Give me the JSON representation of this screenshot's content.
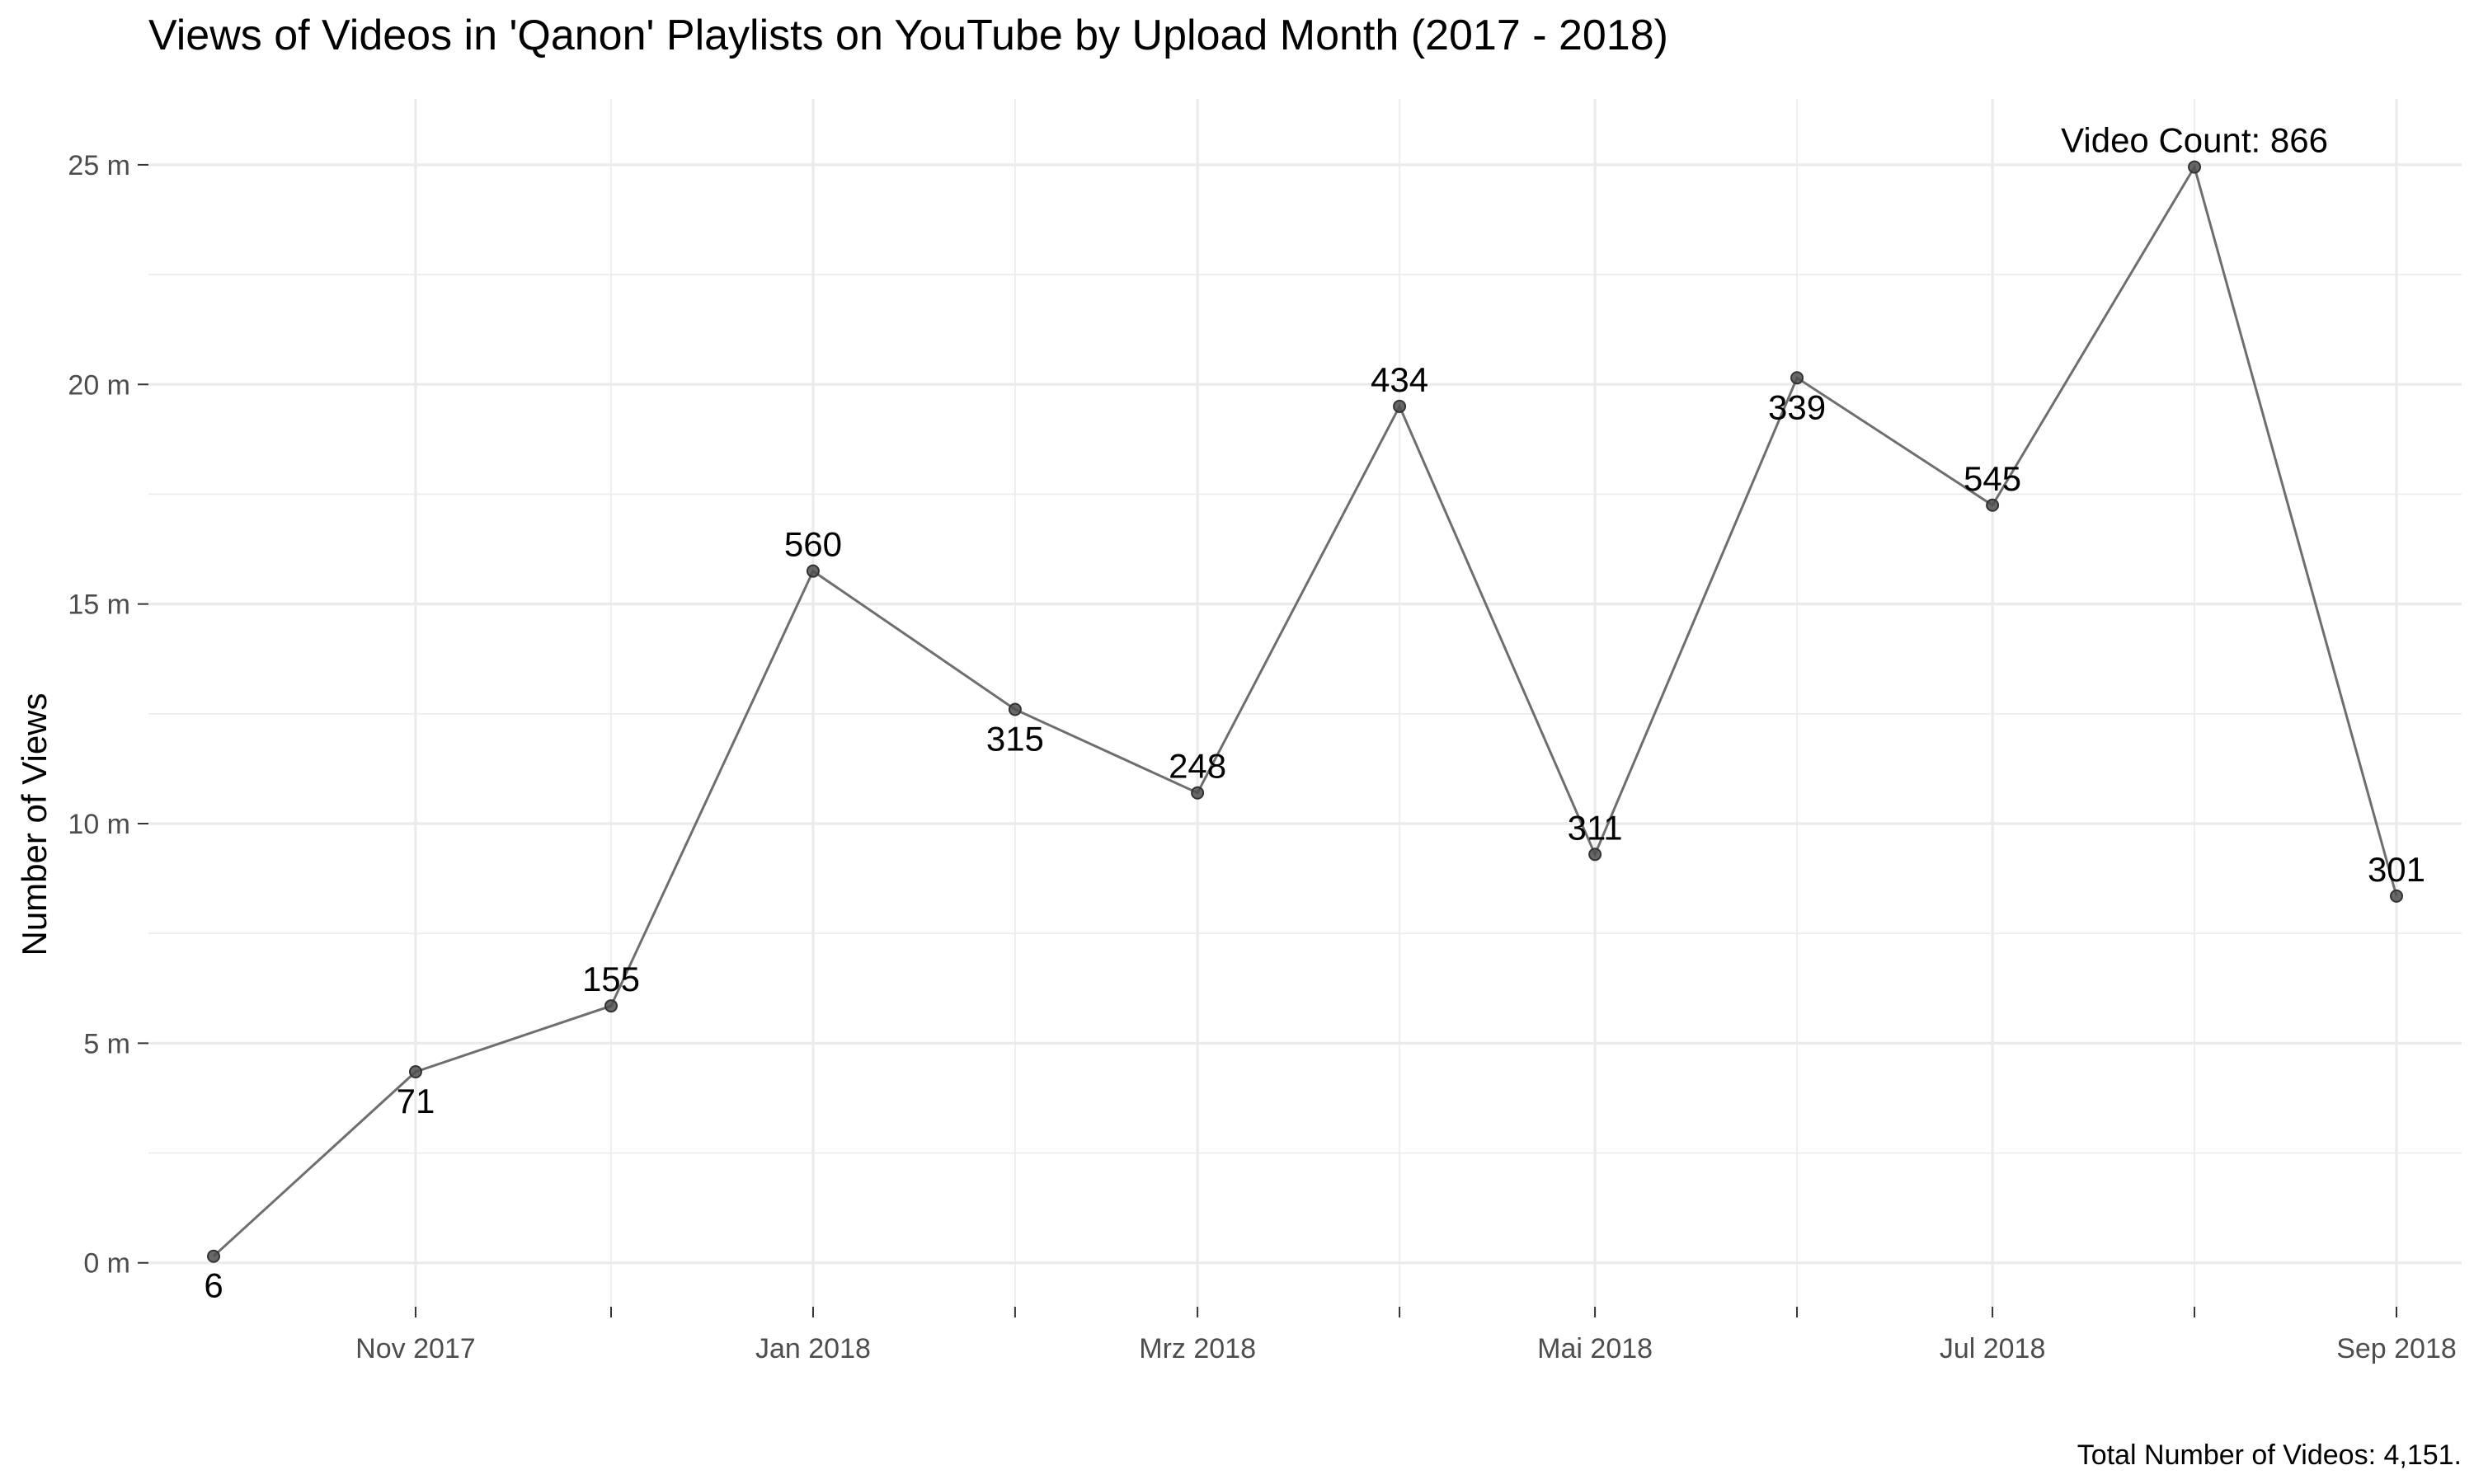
{
  "chart_data": {
    "type": "line",
    "title": "Views of Videos in 'Qanon' Playlists on YouTube by Upload Month (2017 - 2018)",
    "xlabel": "",
    "ylabel": "Number of Views",
    "caption": "Total Number of Videos: 4,151.",
    "x": [
      "2017-10-01",
      "2017-11-01",
      "2017-12-01",
      "2018-01-01",
      "2018-02-01",
      "2018-03-01",
      "2018-04-01",
      "2018-05-01",
      "2018-06-01",
      "2018-07-01",
      "2018-08-01",
      "2018-09-01"
    ],
    "values": [
      150000,
      4350000,
      5850000,
      15750000,
      12600000,
      10700000,
      19500000,
      9300000,
      20150000,
      17250000,
      24950000,
      8350000
    ],
    "labels": [
      "6",
      "71",
      "155",
      "560",
      "315",
      "248",
      "434",
      "311",
      "339",
      "545",
      "Video Count: 866",
      "301"
    ],
    "label_position": [
      "below",
      "below",
      "above",
      "above",
      "below",
      "above",
      "above",
      "above",
      "below",
      "above",
      "above",
      "above"
    ],
    "x_ticks": [
      {
        "date": "2017-11-01",
        "label": "Nov 2017"
      },
      {
        "date": "2018-01-01",
        "label": "Jan 2018"
      },
      {
        "date": "2018-03-01",
        "label": "Mrz 2018"
      },
      {
        "date": "2018-05-01",
        "label": "Mai 2018"
      },
      {
        "date": "2018-07-01",
        "label": "Jul 2018"
      },
      {
        "date": "2018-09-01",
        "label": "Sep 2018"
      }
    ],
    "x_minor_ticks": [
      "2017-12-01",
      "2018-02-01",
      "2018-04-01",
      "2018-06-01",
      "2018-08-01"
    ],
    "xlim": [
      "2017-09-21",
      "2018-09-11"
    ],
    "y_ticks": [
      {
        "value": 0,
        "label": "0 m"
      },
      {
        "value": 5000000,
        "label": "5 m"
      },
      {
        "value": 10000000,
        "label": "10 m"
      },
      {
        "value": 15000000,
        "label": "15 m"
      },
      {
        "value": 20000000,
        "label": "20 m"
      },
      {
        "value": 25000000,
        "label": "25 m"
      }
    ],
    "ylim": [
      -1000000,
      26500000
    ],
    "grid": true,
    "line_color": "#6e6e6e",
    "point_color": "#4d4d4d"
  }
}
